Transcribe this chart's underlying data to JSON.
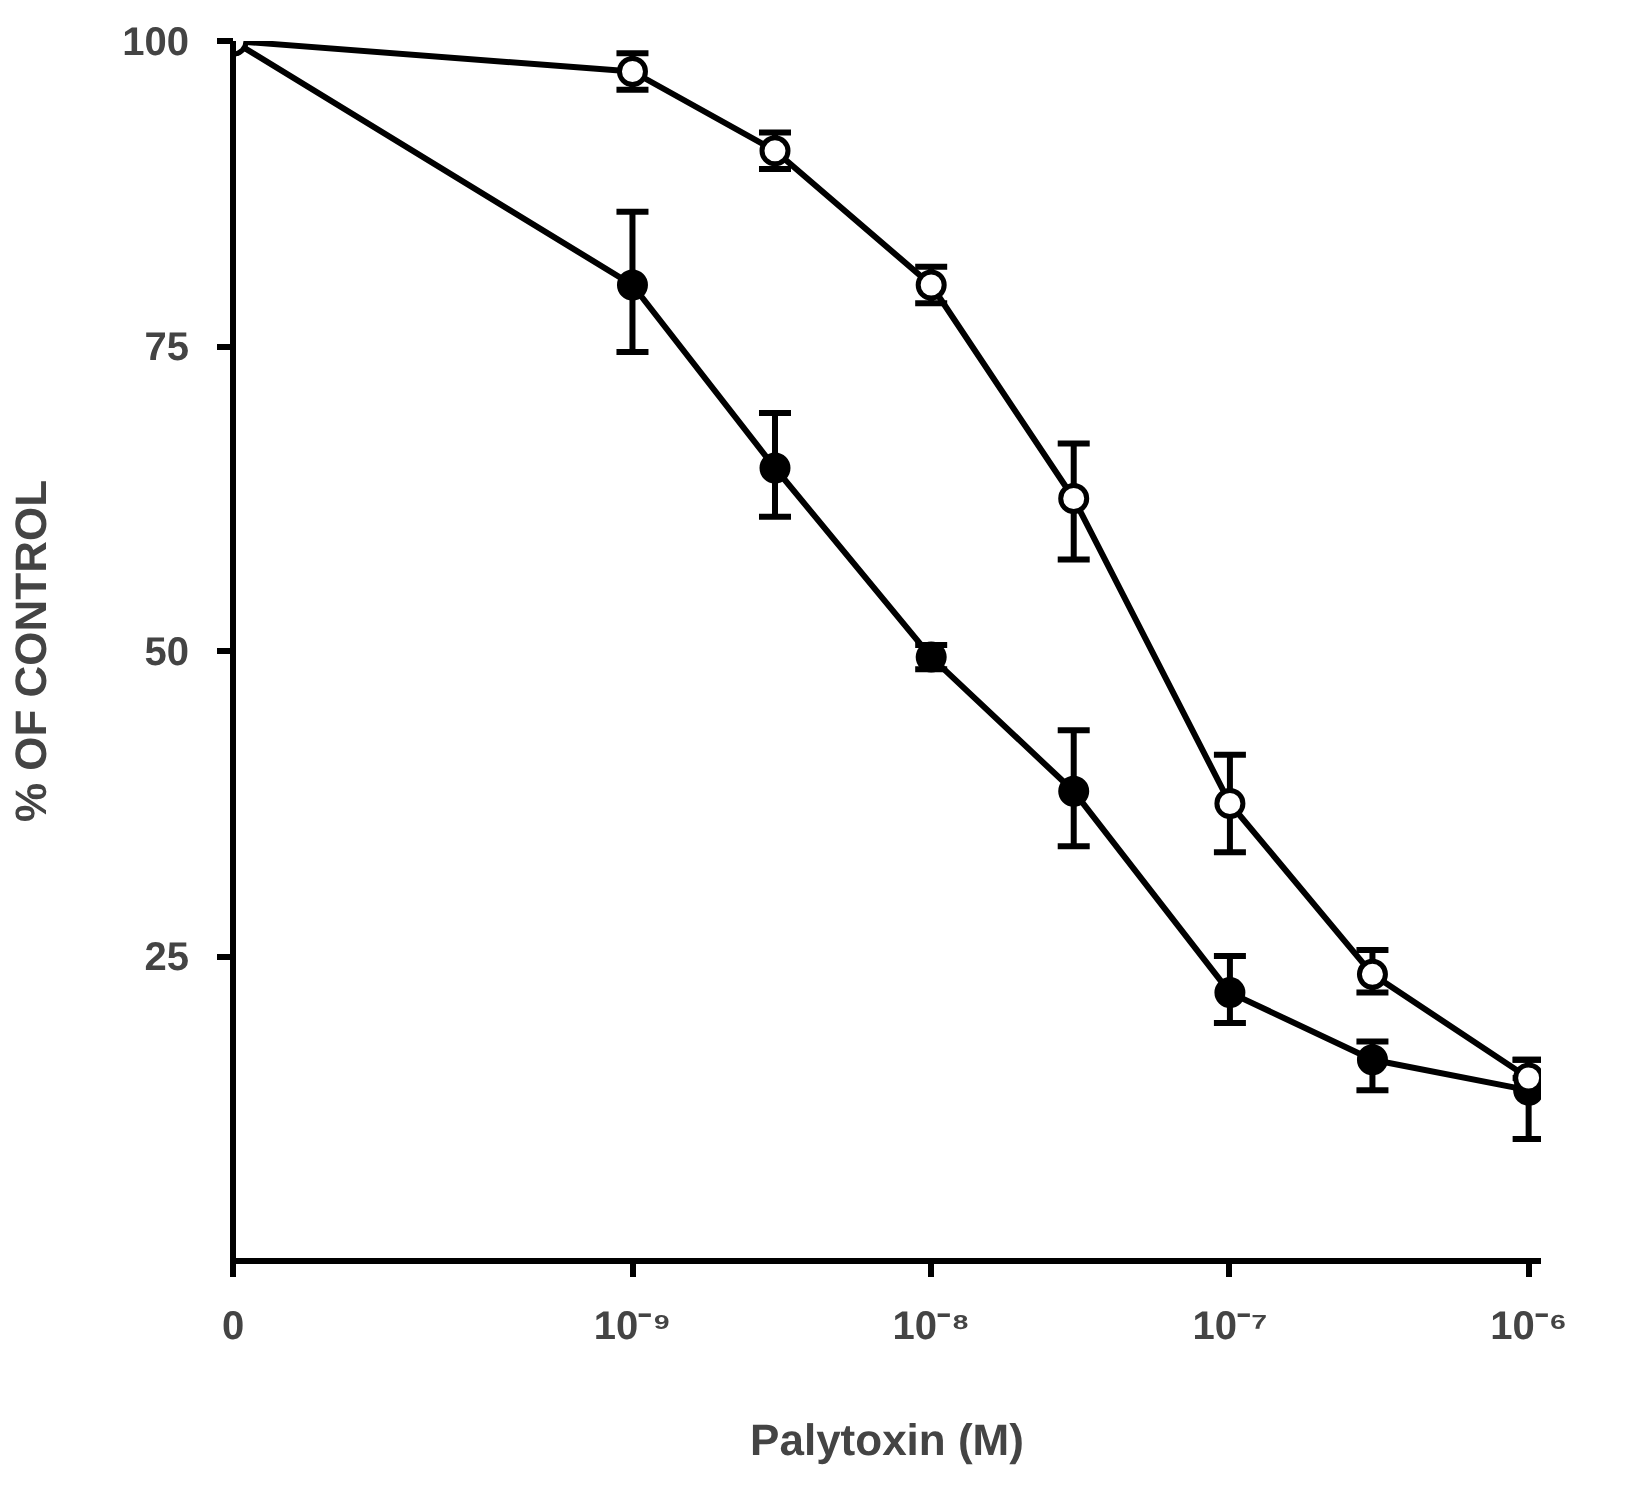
{
  "chart_data": {
    "type": "line",
    "xlabel": "Palytoxin (M)",
    "ylabel": "% OF CONTROL",
    "log": "x",
    "grid": false,
    "xlim": [
      4.6e-11,
      1.1e-06
    ],
    "xticks": [
      {
        "value": 4.6e-11,
        "label": "0"
      },
      {
        "value": 1e-09,
        "label": "10⁻⁹"
      },
      {
        "value": 1e-08,
        "label": "10⁻⁸"
      },
      {
        "value": 1e-07,
        "label": "10⁻⁷"
      },
      {
        "value": 1e-06,
        "label": "10⁻⁶"
      }
    ],
    "ylim": [
      0,
      100
    ],
    "yticks": [
      25,
      50,
      75,
      100
    ],
    "x": [
      4.6e-11,
      1e-09,
      3e-09,
      1e-08,
      3e-08,
      1e-07,
      3e-07,
      1e-06
    ],
    "series": [
      {
        "color": "#000000",
        "marker": "circle_open",
        "values": [
          100,
          97.5,
          91,
          80,
          62.5,
          37.5,
          23.5,
          15
        ],
        "errors": [
          null,
          [
            96,
            99
          ],
          [
            89.5,
            92.5
          ],
          [
            78.5,
            81.5
          ],
          [
            57.5,
            67
          ],
          [
            33.5,
            41.5
          ],
          [
            22,
            25.5
          ],
          [
            15,
            16.5
          ]
        ]
      },
      {
        "color": "#000000",
        "marker": "circle",
        "values": [
          100,
          80,
          65,
          49.5,
          38.5,
          22,
          16.5,
          14
        ],
        "errors": [
          null,
          [
            74.5,
            86
          ],
          [
            61,
            69.5
          ],
          [
            48.5,
            50.5
          ],
          [
            34,
            43.5
          ],
          [
            19.5,
            25
          ],
          [
            14,
            18
          ],
          [
            10,
            16.5
          ]
        ]
      }
    ]
  }
}
